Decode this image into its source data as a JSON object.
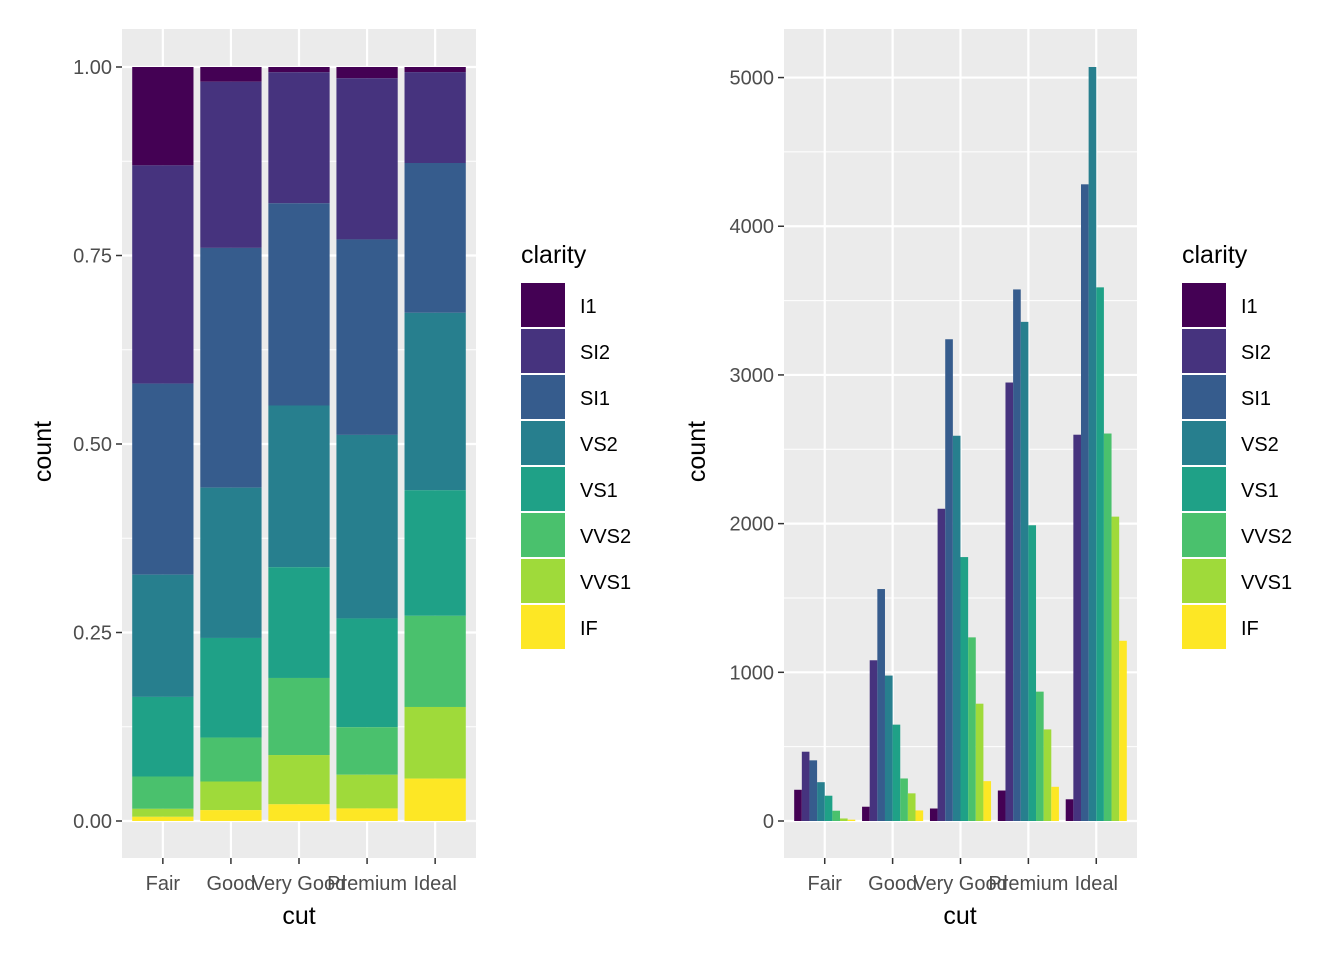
{
  "legend": {
    "title": "clarity",
    "entries": [
      "I1",
      "SI2",
      "SI1",
      "VS2",
      "VS1",
      "VVS2",
      "VVS1",
      "IF"
    ],
    "colors": [
      "#440154",
      "#46337E",
      "#365C8D",
      "#277F8E",
      "#1FA187",
      "#4AC16D",
      "#9FDA3A",
      "#FDE725"
    ]
  },
  "chart_data": [
    {
      "type": "bar",
      "position": "fill",
      "xlabel": "cut",
      "ylabel": "count",
      "categories": [
        "Fair",
        "Good",
        "Very Good",
        "Premium",
        "Ideal"
      ],
      "ylim": [
        0,
        1
      ],
      "yticks": [
        0,
        0.25,
        0.5,
        0.75,
        1
      ],
      "ytick_labels": [
        "0.00",
        "0.25",
        "0.50",
        "0.75",
        "1.00"
      ],
      "grid": true,
      "legend_position": "right",
      "series": [
        {
          "name": "I1",
          "values": [
            210,
            96,
            84,
            205,
            146
          ]
        },
        {
          "name": "SI2",
          "values": [
            466,
            1081,
            2100,
            2949,
            2598
          ]
        },
        {
          "name": "SI1",
          "values": [
            408,
            1560,
            3240,
            3575,
            4282
          ]
        },
        {
          "name": "VS2",
          "values": [
            261,
            978,
            2591,
            3357,
            5071
          ]
        },
        {
          "name": "VS1",
          "values": [
            170,
            648,
            1775,
            1989,
            3589
          ]
        },
        {
          "name": "VVS2",
          "values": [
            69,
            286,
            1235,
            870,
            2606
          ]
        },
        {
          "name": "VVS1",
          "values": [
            17,
            186,
            789,
            616,
            2047
          ]
        },
        {
          "name": "IF",
          "values": [
            9,
            71,
            268,
            230,
            1212
          ]
        }
      ]
    },
    {
      "type": "bar",
      "position": "dodge",
      "xlabel": "cut",
      "ylabel": "count",
      "categories": [
        "Fair",
        "Good",
        "Very Good",
        "Premium",
        "Ideal"
      ],
      "ylim": [
        0,
        5071
      ],
      "yticks": [
        0,
        1000,
        2000,
        3000,
        4000,
        5000
      ],
      "ytick_labels": [
        "0",
        "1000",
        "2000",
        "3000",
        "4000",
        "5000"
      ],
      "grid": true,
      "legend_position": "right",
      "series": [
        {
          "name": "I1",
          "values": [
            210,
            96,
            84,
            205,
            146
          ]
        },
        {
          "name": "SI2",
          "values": [
            466,
            1081,
            2100,
            2949,
            2598
          ]
        },
        {
          "name": "SI1",
          "values": [
            408,
            1560,
            3240,
            3575,
            4282
          ]
        },
        {
          "name": "VS2",
          "values": [
            261,
            978,
            2591,
            3357,
            5071
          ]
        },
        {
          "name": "VS1",
          "values": [
            170,
            648,
            1775,
            1989,
            3589
          ]
        },
        {
          "name": "VVS2",
          "values": [
            69,
            286,
            1235,
            870,
            2606
          ]
        },
        {
          "name": "VVS1",
          "values": [
            17,
            186,
            789,
            616,
            2047
          ]
        },
        {
          "name": "IF",
          "values": [
            9,
            71,
            268,
            230,
            1212
          ]
        }
      ]
    }
  ]
}
